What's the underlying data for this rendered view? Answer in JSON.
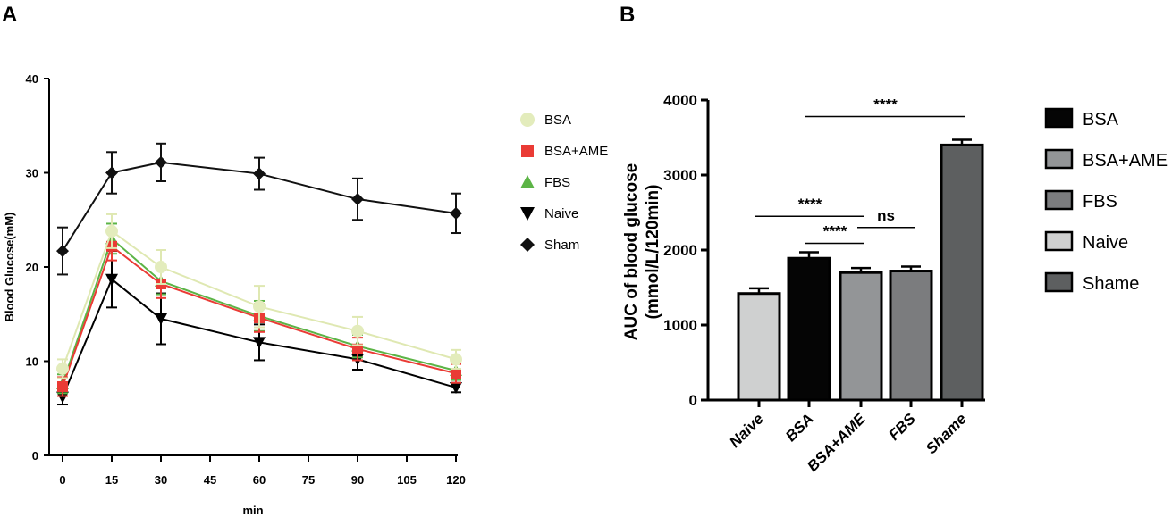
{
  "chart_data": [
    {
      "panel": "A",
      "type": "line",
      "title": "",
      "xlabel": "min",
      "ylabel": "Blood Glucose(mM)",
      "xlim": [
        0,
        120
      ],
      "ylim": [
        0,
        40
      ],
      "xticks": [
        0,
        15,
        30,
        45,
        60,
        75,
        90,
        105,
        120
      ],
      "yticks": [
        0,
        10,
        20,
        30,
        40
      ],
      "x": [
        0,
        15,
        30,
        60,
        90,
        120
      ],
      "series": [
        {
          "name": "BSA",
          "color": "#e3ecbc",
          "marker": "circle",
          "values": [
            9.2,
            23.8,
            20.0,
            15.8,
            13.2,
            10.2
          ],
          "errors": [
            1.0,
            1.8,
            1.8,
            2.2,
            1.5,
            1.0
          ]
        },
        {
          "name": "BSA+AME",
          "color": "#ea3b35",
          "marker": "square",
          "values": [
            7.3,
            22.2,
            18.2,
            14.6,
            11.3,
            8.7
          ],
          "errors": [
            1.0,
            1.5,
            1.5,
            1.5,
            1.2,
            1.0
          ]
        },
        {
          "name": "FBS",
          "color": "#5cb446",
          "marker": "triangle-up",
          "values": [
            7.6,
            23.0,
            18.5,
            14.8,
            11.6,
            9.0
          ],
          "errors": [
            1.0,
            1.6,
            1.4,
            1.6,
            1.2,
            1.0
          ]
        },
        {
          "name": "Naive",
          "color": "#000000",
          "marker": "triangle-down",
          "values": [
            6.2,
            18.7,
            14.5,
            12.0,
            10.2,
            7.2
          ],
          "errors": [
            0.8,
            3.0,
            2.7,
            1.9,
            1.1,
            0.5
          ]
        },
        {
          "name": "Sham",
          "color": "#111111",
          "marker": "diamond",
          "values": [
            21.7,
            30.0,
            31.1,
            29.9,
            27.2,
            25.7
          ],
          "errors": [
            2.5,
            2.2,
            2.0,
            1.7,
            2.2,
            2.1
          ]
        }
      ]
    },
    {
      "panel": "B",
      "type": "bar",
      "title": "",
      "xlabel": "",
      "ylabel_line1": "AUC of blood glucose",
      "ylabel_line2": "(mmol/L/120min)",
      "ylim": [
        0,
        4000
      ],
      "yticks": [
        0,
        1000,
        2000,
        3000,
        4000
      ],
      "categories": [
        "Naive",
        "BSA",
        "BSA+AME",
        "FBS",
        "Shame"
      ],
      "values": [
        1420,
        1890,
        1700,
        1720,
        3400
      ],
      "errors": [
        70,
        80,
        60,
        60,
        70
      ],
      "colors": [
        "#cfd0d0",
        "#050505",
        "#939597",
        "#7b7c7e",
        "#5d5f60"
      ],
      "legend": [
        {
          "name": "BSA",
          "color": "#050505"
        },
        {
          "name": "BSA+AME",
          "color": "#939597"
        },
        {
          "name": "FBS",
          "color": "#7b7c7e"
        },
        {
          "name": "Naive",
          "color": "#cfd0d0"
        },
        {
          "name": "Shame",
          "color": "#5d5f60"
        }
      ],
      "comparisons": [
        {
          "from": 0,
          "to": 2,
          "label": "****",
          "level": 2450
        },
        {
          "from": 2,
          "to": 3,
          "label": "ns",
          "level": 2300
        },
        {
          "from": 1,
          "to": 2,
          "label": "****",
          "level": 2090
        },
        {
          "from": 1,
          "to": 4,
          "label": "****",
          "level": 3780
        }
      ]
    }
  ],
  "panel_a_label": "A",
  "panel_b_label": "B"
}
